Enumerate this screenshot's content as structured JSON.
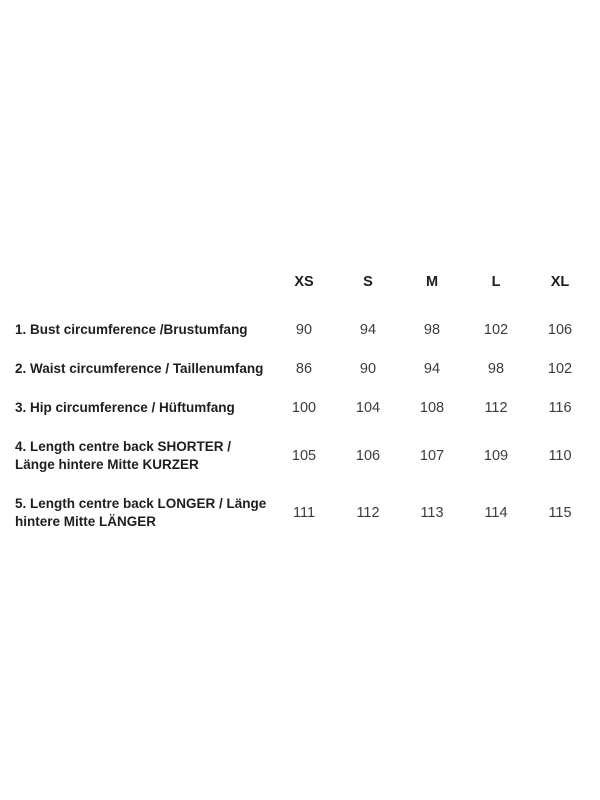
{
  "page": {
    "background": "#ffffff"
  },
  "chart_data": {
    "type": "table",
    "title": "",
    "columns": [
      "",
      "XS",
      "S",
      "M",
      "L",
      "XL"
    ],
    "rows": [
      {
        "label": "1. Bust circumference /Brustumfang",
        "values": [
          "90",
          "94",
          "98",
          "102",
          "106"
        ]
      },
      {
        "label": "2. Waist circumference / Taillenumfang",
        "values": [
          "86",
          "90",
          "94",
          "98",
          "102"
        ]
      },
      {
        "label": "3. Hip circumference / Hüftumfang",
        "values": [
          "100",
          "104",
          "108",
          "112",
          "116"
        ]
      },
      {
        "label": "4. Length centre back SHORTER / Länge hintere Mitte KURZER",
        "values": [
          "105",
          "106",
          "107",
          "109",
          "110"
        ]
      },
      {
        "label": "5. Length centre back LONGER / Länge hintere Mitte LÄNGER",
        "values": [
          "111",
          "112",
          "113",
          "114",
          "115"
        ]
      }
    ],
    "layout": {
      "grid": false,
      "borders": "none",
      "value_alignment": "center"
    },
    "colors": {
      "label_text": "#1e1e1e",
      "value_text": "#3c3c3c",
      "background": "#ffffff"
    }
  }
}
